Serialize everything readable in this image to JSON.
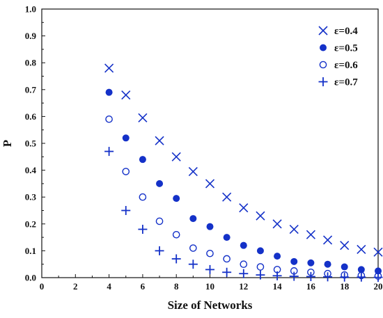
{
  "chart_data": {
    "type": "scatter",
    "title": "",
    "xlabel": "Size of Networks",
    "ylabel": "P",
    "xlim": [
      0,
      20
    ],
    "ylim": [
      0,
      1.0
    ],
    "x_ticks": [
      "0",
      "2",
      "4",
      "6",
      "8",
      "10",
      "12",
      "14",
      "16",
      "18",
      "20"
    ],
    "y_ticks": [
      "0.0",
      "0.1",
      "0.2",
      "0.3",
      "0.4",
      "0.5",
      "0.6",
      "0.7",
      "0.8",
      "0.9",
      "1.0"
    ],
    "grid": false,
    "legend_position": "top-right",
    "marker_color": "#1431c8",
    "x": [
      4,
      5,
      6,
      7,
      8,
      9,
      10,
      11,
      12,
      13,
      14,
      15,
      16,
      17,
      18,
      19,
      20
    ],
    "series": [
      {
        "name": "ε=0.4",
        "marker": "x",
        "values": [
          0.78,
          0.68,
          0.595,
          0.51,
          0.45,
          0.395,
          0.35,
          0.3,
          0.26,
          0.23,
          0.2,
          0.18,
          0.16,
          0.14,
          0.12,
          0.105,
          0.095
        ]
      },
      {
        "name": "ε=0.5",
        "marker": "filled-circle",
        "values": [
          0.69,
          0.52,
          0.44,
          0.35,
          0.295,
          0.22,
          0.19,
          0.15,
          0.12,
          0.1,
          0.08,
          0.06,
          0.055,
          0.05,
          0.04,
          0.03,
          0.025
        ]
      },
      {
        "name": "ε=0.6",
        "marker": "open-circle",
        "values": [
          0.59,
          0.395,
          0.3,
          0.21,
          0.16,
          0.11,
          0.09,
          0.07,
          0.05,
          0.04,
          0.03,
          0.025,
          0.02,
          0.015,
          0.01,
          0.008,
          0.006
        ]
      },
      {
        "name": "ε=0.7",
        "marker": "plus",
        "values": [
          0.47,
          0.25,
          0.18,
          0.1,
          0.07,
          0.05,
          0.03,
          0.02,
          0.015,
          0.01,
          0.007,
          0.005,
          0.004,
          0.003,
          0.002,
          0.002,
          0.001
        ]
      }
    ]
  }
}
